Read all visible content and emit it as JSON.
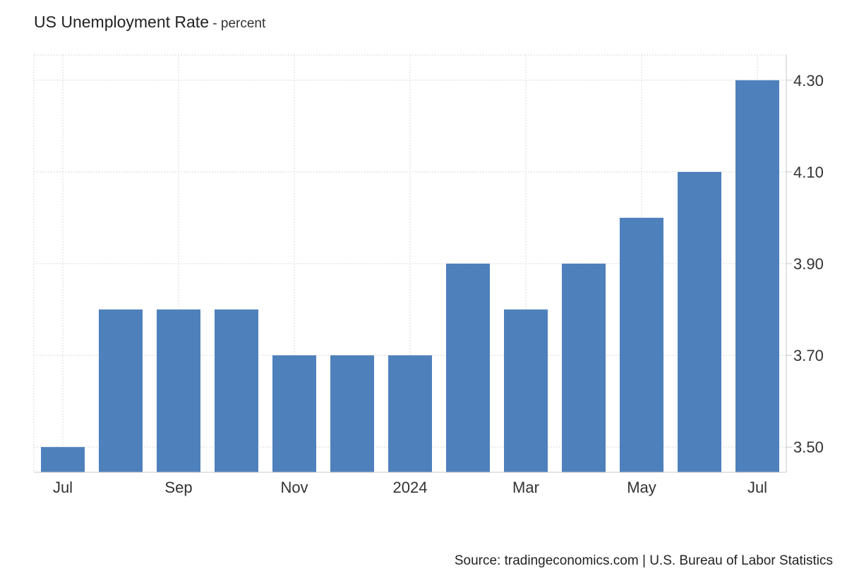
{
  "chart_data": {
    "type": "bar",
    "title": "US Unemployment Rate",
    "subtitle": "percent",
    "categories": [
      "Jul 2023",
      "Aug 2023",
      "Sep 2023",
      "Oct 2023",
      "Nov 2023",
      "Dec 2023",
      "Jan 2024",
      "Feb 2024",
      "Mar 2024",
      "Apr 2024",
      "May 2024",
      "Jun 2024",
      "Jul 2024"
    ],
    "values": [
      3.5,
      3.8,
      3.8,
      3.8,
      3.7,
      3.7,
      3.7,
      3.9,
      3.8,
      3.9,
      4.0,
      4.1,
      4.3
    ],
    "x_tick_labels": [
      {
        "category_index": 0,
        "label": "Jul"
      },
      {
        "category_index": 2,
        "label": "Sep"
      },
      {
        "category_index": 4,
        "label": "Nov"
      },
      {
        "category_index": 6,
        "label": "2024"
      },
      {
        "category_index": 8,
        "label": "Mar"
      },
      {
        "category_index": 10,
        "label": "May"
      },
      {
        "category_index": 12,
        "label": "Jul"
      }
    ],
    "y_ticks": [
      3.5,
      3.7,
      3.9,
      4.1,
      4.3
    ],
    "y_tick_labels": [
      "3.50",
      "3.70",
      "3.90",
      "4.10",
      "4.30"
    ],
    "ylim": [
      3.445,
      4.355
    ],
    "y_axis_side": "right",
    "grid": true,
    "legend": "none",
    "bar_color": "#4e80bc",
    "source": "Source: tradingeconomics.com | U.S. Bureau of Labor Statistics"
  }
}
